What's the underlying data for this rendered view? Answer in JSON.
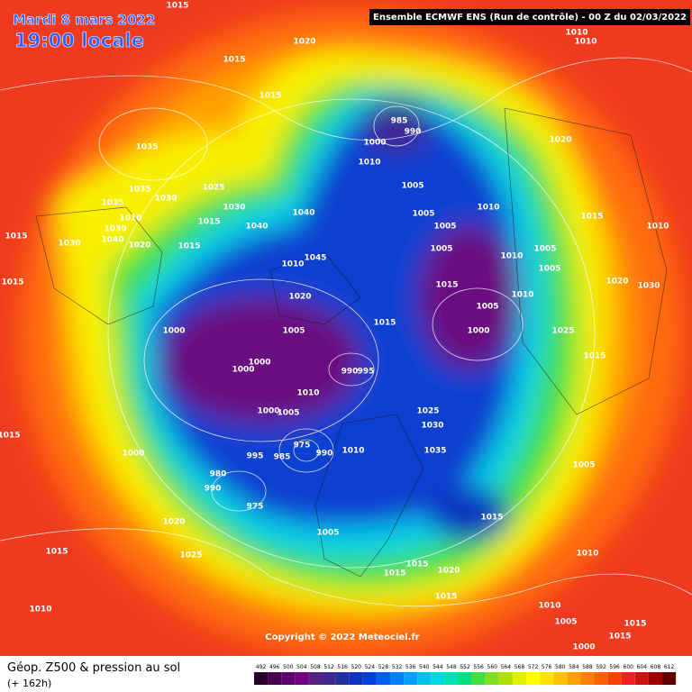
{
  "header": {
    "date": "Mardi 8 mars 2022",
    "time": "19:00 locale",
    "model": "Ensemble ECMWF ENS  (Run de contrôle)  -  00 Z du 02/03/2022"
  },
  "copyright": "Copyright © 2022 Meteociel.fr",
  "footer": {
    "title": "Géop. Z500 & pression au sol",
    "lead": "(+ 162h)"
  },
  "scale": {
    "values": [
      492,
      496,
      500,
      504,
      508,
      512,
      516,
      520,
      524,
      528,
      532,
      536,
      540,
      544,
      548,
      552,
      556,
      560,
      564,
      568,
      572,
      576,
      580,
      584,
      588,
      592,
      596,
      600,
      604,
      608,
      612
    ],
    "colors": [
      "#2a002a",
      "#4a0050",
      "#600070",
      "#700080",
      "#5a2080",
      "#402890",
      "#2030a0",
      "#1030c0",
      "#0040e0",
      "#0060f0",
      "#0080ff",
      "#00a0ff",
      "#00c0f0",
      "#00d8e0",
      "#00e0b0",
      "#00e080",
      "#40e040",
      "#80e020",
      "#b0e000",
      "#e0f000",
      "#ffff00",
      "#ffe000",
      "#ffc000",
      "#ffa000",
      "#ff8000",
      "#ff6000",
      "#ff4000",
      "#f02020",
      "#d01010",
      "#a00000",
      "#600000"
    ]
  },
  "isobars": [
    "1015",
    "1010",
    "1010",
    "1020",
    "1015",
    "1015",
    "985",
    "990",
    "1000",
    "1035",
    "1010",
    "1020",
    "1025",
    "1035",
    "1030",
    "1005",
    "1010",
    "1030",
    "1035",
    "1015",
    "1040",
    "1005",
    "1010",
    "1030",
    "1040",
    "1005",
    "1015",
    "1010",
    "1015",
    "1030",
    "1040",
    "1020",
    "1015",
    "1005",
    "1005",
    "1045",
    "1010",
    "1010",
    "1015",
    "1005",
    "1020",
    "1030",
    "1015",
    "1010",
    "1020",
    "1005",
    "1000",
    "1005",
    "1015",
    "1000",
    "1025",
    "1000",
    "1000",
    "990",
    "995",
    "1010",
    "1015",
    "1025",
    "1000",
    "1005",
    "1030",
    "1015",
    "975",
    "1000",
    "995",
    "985",
    "990",
    "1010",
    "1035",
    "1005",
    "980",
    "990",
    "975",
    "1015",
    "1020",
    "1005",
    "1010",
    "1015",
    "1025",
    "1015",
    "1015",
    "1020",
    "1015",
    "1010",
    "1010",
    "1005",
    "1015",
    "1000",
    "1015"
  ]
}
